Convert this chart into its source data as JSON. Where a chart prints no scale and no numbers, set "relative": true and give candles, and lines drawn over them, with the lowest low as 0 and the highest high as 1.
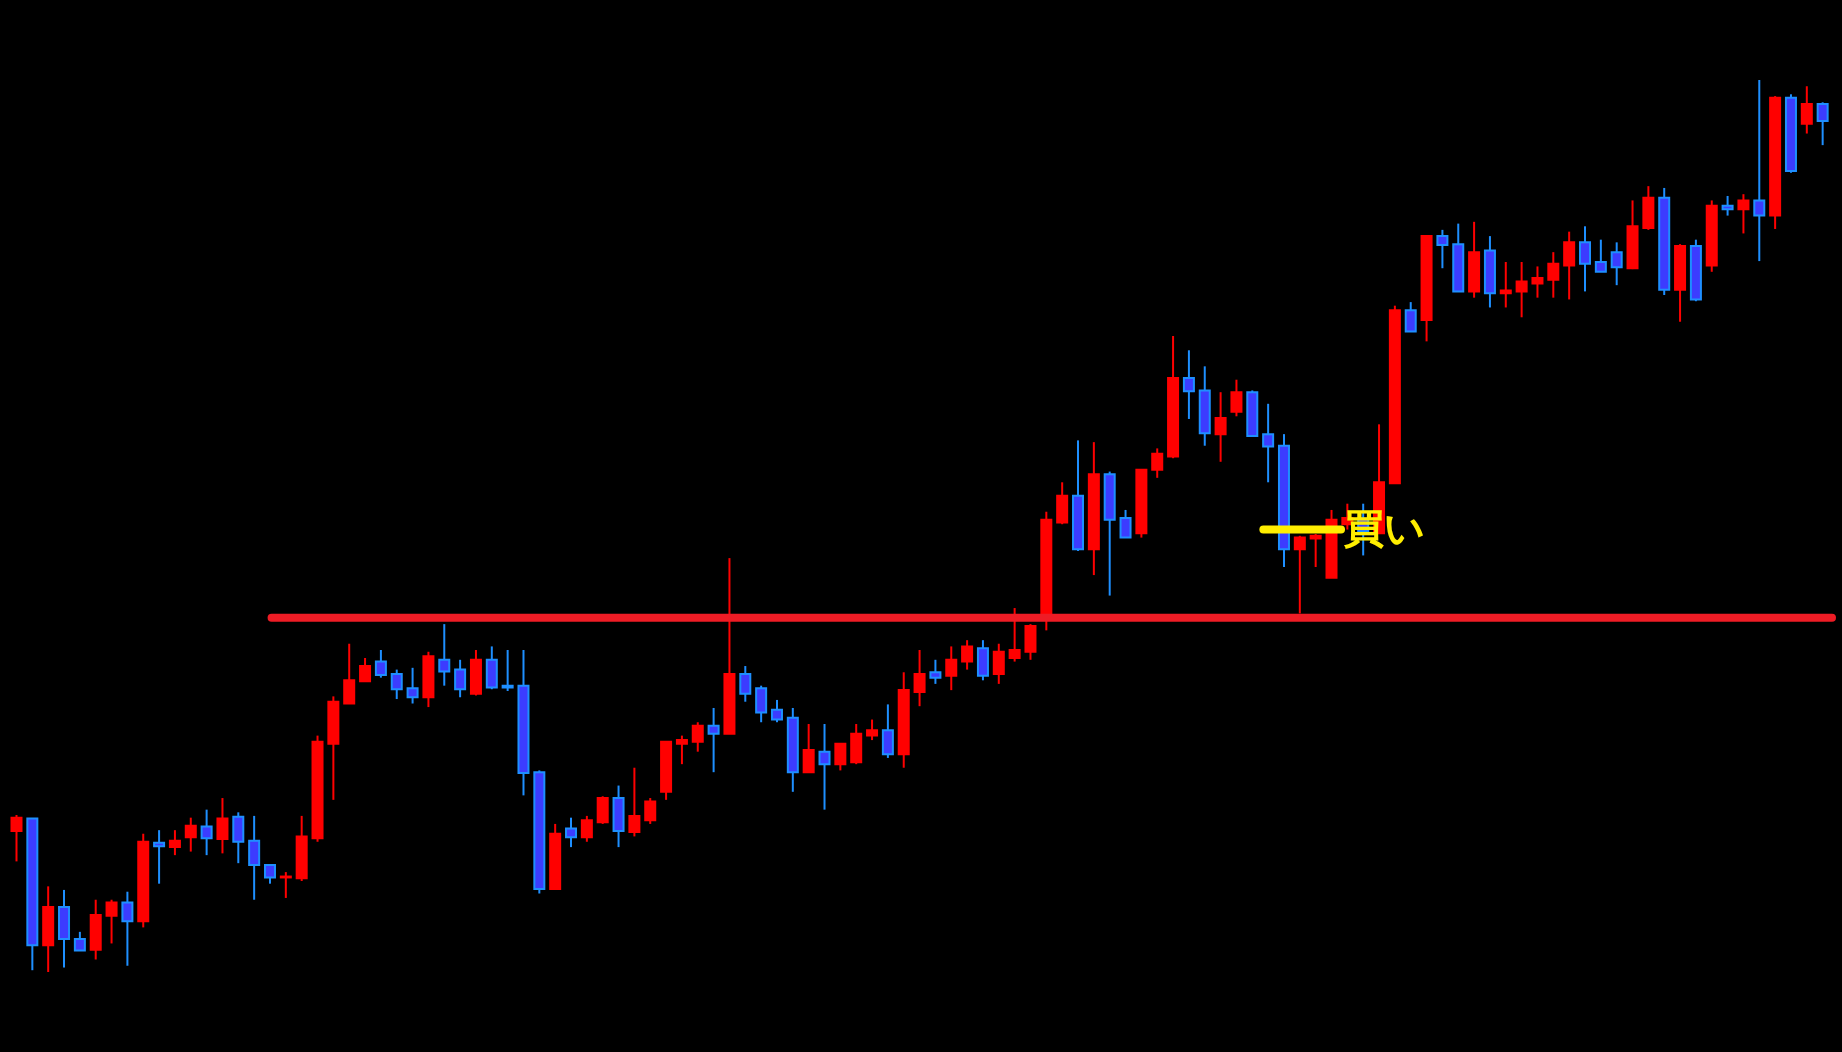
{
  "chart_data": {
    "type": "candlestick",
    "relative": true,
    "categories": [
      null,
      null,
      null,
      null,
      null,
      null,
      null,
      null,
      null,
      null,
      null,
      null,
      null,
      null,
      null,
      null,
      null,
      null,
      null,
      null,
      null,
      null,
      null,
      null,
      null,
      null,
      null,
      null,
      null,
      null,
      null,
      null,
      null,
      null,
      null,
      null,
      null,
      null,
      null,
      null,
      null,
      null,
      null,
      null,
      null,
      null,
      null,
      null,
      null,
      null,
      null,
      null,
      null,
      null,
      null,
      null,
      null,
      null,
      null,
      null,
      null,
      null,
      null,
      null,
      null,
      null,
      null,
      null,
      null,
      null,
      null,
      null,
      null,
      null,
      null,
      null,
      null,
      null,
      null,
      null,
      null,
      null,
      null,
      null,
      null,
      null,
      null,
      null,
      null,
      null,
      null,
      null,
      null,
      null,
      null,
      null,
      null,
      null,
      null,
      null,
      null,
      null,
      null,
      null,
      null,
      null,
      null,
      null,
      null,
      null,
      null,
      null,
      null,
      null,
      null
    ],
    "ohlc": [
      [
        0.158,
        0.176,
        0.124,
        0.173
      ],
      [
        0.172,
        0.172,
        0.002,
        0.03
      ],
      [
        0.03,
        0.096,
        0.0,
        0.073
      ],
      [
        0.073,
        0.092,
        0.005,
        0.037
      ],
      [
        0.037,
        0.045,
        0.024,
        0.024
      ],
      [
        0.025,
        0.081,
        0.014,
        0.064
      ],
      [
        0.063,
        0.081,
        0.032,
        0.078
      ],
      [
        0.078,
        0.09,
        0.007,
        0.057
      ],
      [
        0.057,
        0.155,
        0.05,
        0.146
      ],
      [
        0.145,
        0.159,
        0.099,
        0.141
      ],
      [
        0.14,
        0.159,
        0.131,
        0.147
      ],
      [
        0.151,
        0.173,
        0.135,
        0.164
      ],
      [
        0.163,
        0.182,
        0.131,
        0.15
      ],
      [
        0.149,
        0.195,
        0.133,
        0.172
      ],
      [
        0.174,
        0.179,
        0.122,
        0.146
      ],
      [
        0.147,
        0.175,
        0.081,
        0.12
      ],
      [
        0.12,
        0.12,
        0.099,
        0.106
      ],
      [
        0.106,
        0.112,
        0.083,
        0.107
      ],
      [
        0.105,
        0.175,
        0.102,
        0.152
      ],
      [
        0.15,
        0.265,
        0.146,
        0.258
      ],
      [
        0.256,
        0.309,
        0.193,
        0.303
      ],
      [
        0.301,
        0.368,
        0.301,
        0.327
      ],
      [
        0.326,
        0.352,
        0.326,
        0.343
      ],
      [
        0.348,
        0.361,
        0.33,
        0.333
      ],
      [
        0.334,
        0.339,
        0.306,
        0.317
      ],
      [
        0.318,
        0.341,
        0.301,
        0.308
      ],
      [
        0.308,
        0.359,
        0.297,
        0.354
      ],
      [
        0.35,
        0.39,
        0.321,
        0.337
      ],
      [
        0.339,
        0.35,
        0.308,
        0.317
      ],
      [
        0.312,
        0.361,
        0.31,
        0.35
      ],
      [
        0.35,
        0.365,
        0.317,
        0.319
      ],
      [
        0.321,
        0.361,
        0.315,
        0.319
      ],
      [
        0.321,
        0.361,
        0.198,
        0.223
      ],
      [
        0.224,
        0.226,
        0.088,
        0.093
      ],
      [
        0.093,
        0.166,
        0.093,
        0.155
      ],
      [
        0.161,
        0.173,
        0.14,
        0.151
      ],
      [
        0.151,
        0.175,
        0.146,
        0.17
      ],
      [
        0.168,
        0.197,
        0.166,
        0.195
      ],
      [
        0.195,
        0.209,
        0.14,
        0.158
      ],
      [
        0.157,
        0.229,
        0.152,
        0.175
      ],
      [
        0.17,
        0.195,
        0.166,
        0.191
      ],
      [
        0.202,
        0.258,
        0.193,
        0.258
      ],
      [
        0.256,
        0.265,
        0.233,
        0.26
      ],
      [
        0.258,
        0.28,
        0.247,
        0.276
      ],
      [
        0.276,
        0.296,
        0.224,
        0.267
      ],
      [
        0.267,
        0.464,
        0.267,
        0.334
      ],
      [
        0.334,
        0.343,
        0.303,
        0.312
      ],
      [
        0.318,
        0.321,
        0.28,
        0.291
      ],
      [
        0.294,
        0.305,
        0.28,
        0.283
      ],
      [
        0.285,
        0.296,
        0.202,
        0.224
      ],
      [
        0.224,
        0.278,
        0.224,
        0.249
      ],
      [
        0.247,
        0.278,
        0.182,
        0.233
      ],
      [
        0.233,
        0.256,
        0.226,
        0.256
      ],
      [
        0.235,
        0.278,
        0.233,
        0.267
      ],
      [
        0.265,
        0.283,
        0.26,
        0.271
      ],
      [
        0.271,
        0.3,
        0.24,
        0.244
      ],
      [
        0.244,
        0.336,
        0.229,
        0.316
      ],
      [
        0.314,
        0.361,
        0.298,
        0.334
      ],
      [
        0.336,
        0.35,
        0.323,
        0.33
      ],
      [
        0.332,
        0.365,
        0.316,
        0.35
      ],
      [
        0.348,
        0.372,
        0.339,
        0.365
      ],
      [
        0.363,
        0.372,
        0.327,
        0.332
      ],
      [
        0.334,
        0.368,
        0.323,
        0.359
      ],
      [
        0.352,
        0.408,
        0.348,
        0.361
      ],
      [
        0.359,
        0.39,
        0.35,
        0.388
      ],
      [
        0.397,
        0.516,
        0.383,
        0.507
      ],
      [
        0.504,
        0.549,
        0.502,
        0.534
      ],
      [
        0.534,
        0.596,
        0.472,
        0.474
      ],
      [
        0.474,
        0.594,
        0.445,
        0.558
      ],
      [
        0.558,
        0.561,
        0.422,
        0.507
      ],
      [
        0.509,
        0.518,
        0.487,
        0.487
      ],
      [
        0.492,
        0.563,
        0.487,
        0.563
      ],
      [
        0.563,
        0.587,
        0.554,
        0.581
      ],
      [
        0.578,
        0.713,
        0.576,
        0.666
      ],
      [
        0.666,
        0.697,
        0.62,
        0.651
      ],
      [
        0.652,
        0.679,
        0.59,
        0.604
      ],
      [
        0.603,
        0.65,
        0.572,
        0.621
      ],
      [
        0.628,
        0.664,
        0.623,
        0.65
      ],
      [
        0.65,
        0.652,
        0.601,
        0.601
      ],
      [
        0.603,
        0.637,
        0.549,
        0.589
      ],
      [
        0.59,
        0.603,
        0.454,
        0.474
      ],
      [
        0.474,
        0.489,
        0.402,
        0.487
      ],
      [
        0.486,
        0.491,
        0.454,
        0.489
      ],
      [
        0.442,
        0.518,
        0.442,
        0.507
      ],
      [
        0.502,
        0.525,
        0.496,
        0.509
      ],
      [
        0.508,
        0.525,
        0.467,
        0.494
      ],
      [
        0.492,
        0.614,
        0.492,
        0.549
      ],
      [
        0.548,
        0.747,
        0.548,
        0.742
      ],
      [
        0.742,
        0.751,
        0.718,
        0.718
      ],
      [
        0.731,
        0.825,
        0.707,
        0.825
      ],
      [
        0.825,
        0.832,
        0.789,
        0.815
      ],
      [
        0.816,
        0.839,
        0.763,
        0.763
      ],
      [
        0.763,
        0.841,
        0.756,
        0.807
      ],
      [
        0.809,
        0.825,
        0.745,
        0.761
      ],
      [
        0.761,
        0.796,
        0.745,
        0.764
      ],
      [
        0.763,
        0.796,
        0.734,
        0.774
      ],
      [
        0.772,
        0.791,
        0.756,
        0.778
      ],
      [
        0.776,
        0.807,
        0.756,
        0.794
      ],
      [
        0.792,
        0.83,
        0.754,
        0.818
      ],
      [
        0.818,
        0.836,
        0.763,
        0.794
      ],
      [
        0.796,
        0.821,
        0.785,
        0.785
      ],
      [
        0.807,
        0.818,
        0.77,
        0.79
      ],
      [
        0.789,
        0.865,
        0.788,
        0.836
      ],
      [
        0.834,
        0.881,
        0.832,
        0.868
      ],
      [
        0.868,
        0.879,
        0.759,
        0.765
      ],
      [
        0.765,
        0.816,
        0.729,
        0.814
      ],
      [
        0.814,
        0.821,
        0.752,
        0.754
      ],
      [
        0.792,
        0.865,
        0.785,
        0.859
      ],
      [
        0.859,
        0.87,
        0.848,
        0.855
      ],
      [
        0.855,
        0.872,
        0.828,
        0.865
      ],
      [
        0.865,
        1.0,
        0.797,
        0.848
      ],
      [
        0.848,
        0.982,
        0.833,
        0.98
      ],
      [
        0.98,
        0.984,
        0.896,
        0.898
      ],
      [
        0.951,
        0.993,
        0.94,
        0.973
      ],
      [
        0.973,
        0.975,
        0.927,
        0.954
      ]
    ],
    "ref_lines": [
      {
        "axis": "y",
        "value": 0.397,
        "color": "#ee1c25"
      },
      {
        "axis": "y",
        "value": 0.496,
        "color": "#ffee00",
        "label": "買い"
      }
    ]
  }
}
